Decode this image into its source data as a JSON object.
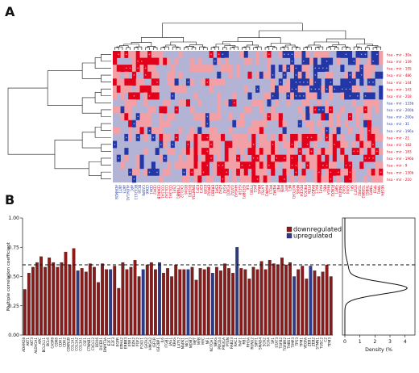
{
  "panels": {
    "a_letter": "A",
    "b_letter": "B"
  },
  "colors": {
    "down": "#8b1a1a",
    "up": "#2f3b88",
    "heat_base": "#b3b3d6",
    "heat_pink": "#f2a0a6",
    "heat_red": "#e3001b",
    "heat_blue": "#2336a6",
    "label_red": "#e3001b",
    "label_blue": "#2a3ea8"
  },
  "chart_data": [
    {
      "type": "heatmap",
      "row_labels": [
        {
          "text": "hsa - mir - 30a",
          "group": "down"
        },
        {
          "text": "hsa - mir - 139",
          "group": "down"
        },
        {
          "text": "hsa - mir - 195",
          "group": "down"
        },
        {
          "text": "hsa - mir - 486",
          "group": "down"
        },
        {
          "text": "hsa - mir - 144",
          "group": "down"
        },
        {
          "text": "hsa - mir - 143",
          "group": "down"
        },
        {
          "text": "hsa - mir - 218",
          "group": "down"
        },
        {
          "text": "hsa - mir - 133b",
          "group": "up"
        },
        {
          "text": "hsa - mir - 200b",
          "group": "up"
        },
        {
          "text": "hsa - mir - 200a",
          "group": "up"
        },
        {
          "text": "hsa - mir - 31",
          "group": "up"
        },
        {
          "text": "hsa - mir - 196a",
          "group": "up"
        },
        {
          "text": "hsa - mir - 21",
          "group": "down"
        },
        {
          "text": "hsa - mir - 182",
          "group": "down"
        },
        {
          "text": "hsa - mir - 183",
          "group": "down"
        },
        {
          "text": "hsa - mir - 196b",
          "group": "down"
        },
        {
          "text": "hsa - mir - 9",
          "group": "down"
        },
        {
          "text": "hsa - mir - 130b",
          "group": "down"
        },
        {
          "text": "hsa - mir - 210",
          "group": "down"
        }
      ],
      "column_count": 70,
      "column_label_colors": "mostly red (downregulated), first ~10 columns blue (upregulated)",
      "cell_levels": "0=base lavender, 1=pink, 2=red significant, 3=blue significant"
    },
    {
      "type": "bar",
      "ylabel": "Multiple correlation coefficient",
      "ylim": [
        0.0,
        1.0
      ],
      "yticks": [
        "0.00",
        "0.25",
        "0.50",
        "0.75",
        "1.00"
      ],
      "threshold": 0.6,
      "legend": [
        {
          "label": "downregulated",
          "color": "#8b1a1a"
        },
        {
          "label": "upregulated",
          "color": "#2f3b88"
        }
      ],
      "categories": [
        "ADAM28",
        "AKT1",
        "AKT3",
        "ALDH1A1",
        "APC",
        "BCL2L11",
        "BCL6",
        "CASP8",
        "CDK6",
        "CDH1",
        "CDH2",
        "CDKN1B",
        "COL1A1",
        "COL1A2",
        "COL3A1",
        "CSF1",
        "CTNNB1",
        "CXCL12",
        "DDX6",
        "DICER1",
        "DNMT3A",
        "E2F1",
        "E2F3",
        "EGFR",
        "EPHA2",
        "ERBB3",
        "ESR1",
        "EZH2",
        "FGF2",
        "FOXO1",
        "GATA2",
        "HMGA2",
        "IGF1R",
        "IGF2BP1",
        "IL6",
        "ITGB1",
        "JAG1",
        "KRAS",
        "LATS2",
        "MAPK1",
        "MCL1",
        "MDM2",
        "MET",
        "MYB",
        "MYC",
        "NF1",
        "NOTCH1",
        "NRAS",
        "PDCD4",
        "PIK3CA",
        "PTEN",
        "RAB23",
        "RAC1",
        "RAF1",
        "RB1",
        "RHOA",
        "RUNX2",
        "SIRT1",
        "SMAD4",
        "SOX2",
        "SOX4",
        "SP1",
        "STAT3",
        "TGFB2",
        "TGFBR2",
        "THBS1",
        "TIMP3",
        "TP53",
        "TPM1",
        "VEGFA",
        "ZEB1",
        "ZEB2",
        "STMN1",
        "TUSC2",
        "C2",
        "TPM3"
      ],
      "series": [
        {
          "name": "downregulated",
          "values": [
            0.39,
            0.53,
            0.58,
            0.62,
            0.67,
            0.58,
            0.66,
            0.62,
            0.58,
            0.62,
            0.71,
            0.6,
            0.74,
            0.55,
            0.57,
            0.54,
            0.61,
            0.58,
            0.45,
            0.61,
            0.56,
            0.56,
            0.59,
            0.4,
            0.62,
            0.56,
            0.58,
            0.64,
            0.5,
            0.56,
            0.6,
            0.62,
            0.56,
            0.62,
            0.53,
            0.57,
            0.5,
            0.6,
            0.56,
            0.56,
            0.56,
            0.58,
            0.47,
            0.57,
            0.56,
            0.58,
            0.53,
            0.58,
            0.55,
            0.61,
            0.57,
            0.53,
            0.75,
            0.57,
            0.56,
            0.48,
            0.58,
            0.56,
            0.63,
            0.56,
            0.64,
            0.61,
            0.6,
            0.66,
            0.6,
            0.62,
            0.5,
            0.56,
            0.59,
            0.48,
            0.59,
            0.55,
            0.5,
            0.54,
            0.6,
            0.5
          ]
        },
        {
          "name": "upregulated",
          "indices": [
            13,
            21,
            29,
            33,
            40,
            46,
            52,
            66,
            70
          ]
        }
      ],
      "x_tick_labels_note": "rotated gene labels under each bar"
    },
    {
      "type": "area",
      "xlabel": "Density (%",
      "xticks": [
        "0",
        "1",
        "2",
        "3",
        "4"
      ],
      "shape": "density of correlation coefficients, peak near 0.40"
    }
  ]
}
